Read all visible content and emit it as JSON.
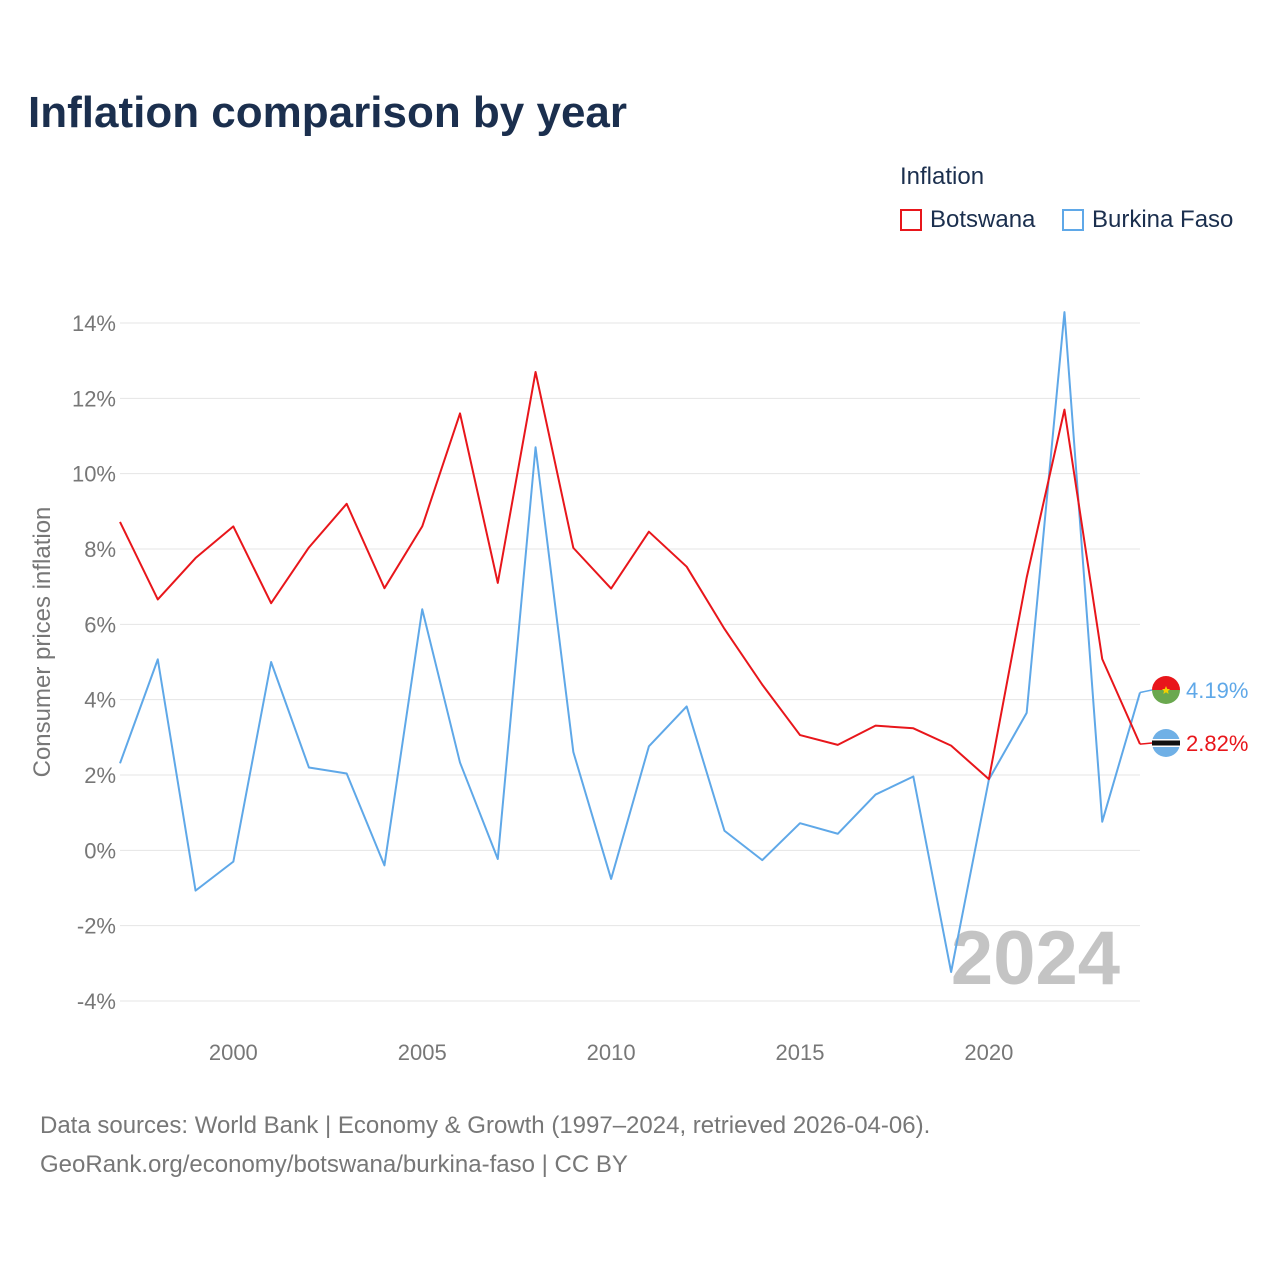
{
  "title": "Inflation comparison by year",
  "legend": {
    "title": "Inflation",
    "items": [
      {
        "name": "Botswana",
        "color": "#e8161b"
      },
      {
        "name": "Burkina Faso",
        "color": "#5fa8e8"
      }
    ]
  },
  "year_watermark": "2024",
  "footer": {
    "line1": "Data sources: World Bank | Economy & Growth (1997–2024, retrieved 2026-04-06).",
    "line2": "GeoRank.org/economy/botswana/burkina-faso | CC BY"
  },
  "chart_data": {
    "type": "line",
    "title": "Inflation comparison by year",
    "xlabel": "",
    "ylabel": "Consumer prices inflation",
    "x": [
      1997,
      1998,
      1999,
      2000,
      2001,
      2002,
      2003,
      2004,
      2005,
      2006,
      2007,
      2008,
      2009,
      2010,
      2011,
      2012,
      2013,
      2014,
      2015,
      2016,
      2017,
      2018,
      2019,
      2020,
      2021,
      2022,
      2023,
      2024
    ],
    "xlim": [
      1997,
      2024
    ],
    "ylim": [
      -4,
      14
    ],
    "yticks": [
      -4,
      -2,
      0,
      2,
      4,
      6,
      8,
      10,
      12,
      14
    ],
    "ytick_labels": [
      "-4%",
      "-2%",
      "0%",
      "2%",
      "4%",
      "6%",
      "8%",
      "10%",
      "12%",
      "14%"
    ],
    "xticks": [
      2000,
      2005,
      2010,
      2015,
      2020
    ],
    "xtick_labels": [
      "2000",
      "2005",
      "2010",
      "2015",
      "2020"
    ],
    "grid": true,
    "legend_position": "top-right",
    "series": [
      {
        "name": "Botswana",
        "color": "#e8161b",
        "values": [
          8.72,
          6.66,
          7.76,
          8.6,
          6.56,
          8.04,
          9.2,
          6.96,
          8.6,
          11.6,
          7.1,
          12.7,
          8.03,
          6.95,
          8.46,
          7.53,
          5.88,
          4.4,
          3.06,
          2.8,
          3.31,
          3.24,
          2.78,
          1.89,
          7.24,
          11.7,
          5.08,
          2.82
        ],
        "end_label": "2.82%"
      },
      {
        "name": "Burkina Faso",
        "color": "#5fa8e8",
        "values": [
          2.31,
          5.07,
          -1.07,
          -0.3,
          5.0,
          2.2,
          2.04,
          -0.4,
          6.4,
          2.33,
          -0.23,
          10.7,
          2.61,
          -0.76,
          2.76,
          3.82,
          0.52,
          -0.26,
          0.72,
          0.44,
          1.48,
          1.96,
          -3.23,
          1.88,
          3.65,
          14.29,
          0.76,
          4.19
        ],
        "end_label": "4.19%"
      }
    ]
  }
}
